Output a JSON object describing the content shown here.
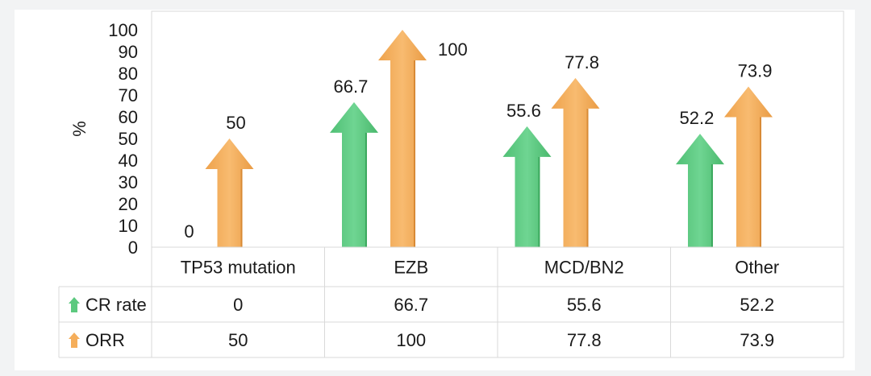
{
  "chart_data": {
    "type": "bar",
    "mark": "arrow",
    "ylabel": "%",
    "ylim": [
      0,
      100
    ],
    "yticks": [
      "0",
      "10",
      "20",
      "30",
      "40",
      "50",
      "60",
      "70",
      "80",
      "90",
      "100"
    ],
    "categories": [
      "TP53 mutation",
      "EZB",
      "MCD/BN2",
      "Other"
    ],
    "series": [
      {
        "name": "CR rate",
        "color": "#5cc97f",
        "values": [
          0,
          66.7,
          55.6,
          52.2
        ],
        "labels": [
          "0",
          "66.7",
          "55.6",
          "52.2"
        ]
      },
      {
        "name": "ORR",
        "color": "#f5ae5b",
        "values": [
          50,
          100,
          77.8,
          73.9
        ],
        "labels": [
          "50",
          "100",
          "77.8",
          "73.9"
        ]
      }
    ],
    "data_table": true,
    "legend_placement": "data-table-rows"
  }
}
